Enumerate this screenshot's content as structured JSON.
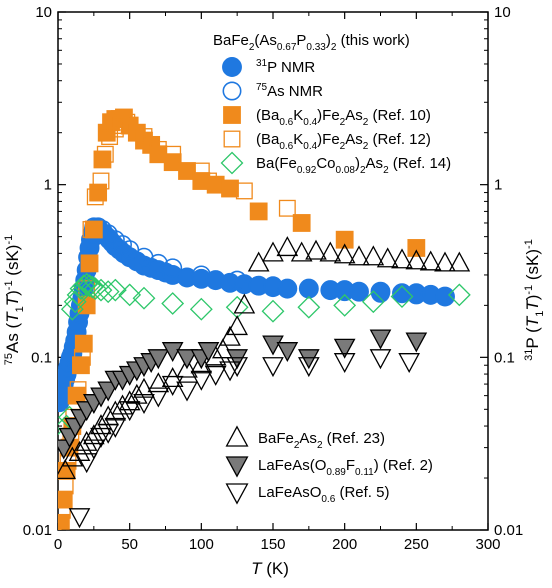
{
  "chart_data": {
    "type": "scatter",
    "title": "",
    "xlabel": "T (K)",
    "ylabel_left": "75As (T1T)-1 (sK)-1",
    "ylabel_right": "31P (T1T)-1 (sK)-1",
    "xlim": [
      0,
      300
    ],
    "ylim": [
      0.01,
      10
    ],
    "yscale": "log",
    "grid": false,
    "x_ticks": [
      "0",
      "50",
      "100",
      "150",
      "200",
      "250",
      "300"
    ],
    "y_ticks_left": [
      "0.01",
      "0.1",
      "1",
      "10"
    ],
    "y_ticks_right": [
      "0.01",
      "0.1",
      "1",
      "10"
    ],
    "legend_top_title": "BaFe2(As0.67P0.33)2 (this work)",
    "legend": [
      {
        "label": "31P NMR",
        "marker": "filled-circle",
        "color": "#1f78e0"
      },
      {
        "label": "75As NMR",
        "marker": "open-circle",
        "color": "#1f78e0"
      },
      {
        "label": "(Ba0.6K0.4)Fe2As2 (Ref. 10)",
        "marker": "filled-square",
        "color": "#f08a1c"
      },
      {
        "label": "(Ba0.6K0.4)Fe2As2 (Ref. 12)",
        "marker": "open-square",
        "color": "#f08a1c"
      },
      {
        "label": "Ba(Fe0.92Co0.08)2As2 (Ref. 14)",
        "marker": "open-diamond",
        "color": "#2ec76a"
      },
      {
        "label": "BaFe2As2 (Ref. 23)",
        "marker": "open-triangle-up",
        "color": "#000000"
      },
      {
        "label": "LaFeAs(O0.89F0.11) (Ref. 2)",
        "marker": "filled-triangle-down",
        "color": "#555555"
      },
      {
        "label": "LaFeAsO0.6 (Ref. 5)",
        "marker": "open-triangle-down",
        "color": "#000000"
      }
    ],
    "series": [
      {
        "name": "31P NMR",
        "marker": "filled-circle",
        "color": "#1f78e0",
        "points": [
          [
            1,
            0.055
          ],
          [
            2,
            0.06
          ],
          [
            3,
            0.065
          ],
          [
            4,
            0.07
          ],
          [
            5,
            0.075
          ],
          [
            6,
            0.08
          ],
          [
            7,
            0.087
          ],
          [
            8,
            0.093
          ],
          [
            9,
            0.1
          ],
          [
            10,
            0.105
          ],
          [
            11,
            0.115
          ],
          [
            12,
            0.125
          ],
          [
            13,
            0.14
          ],
          [
            14,
            0.16
          ],
          [
            15,
            0.18
          ],
          [
            16,
            0.2
          ],
          [
            17,
            0.22
          ],
          [
            18,
            0.25
          ],
          [
            19,
            0.28
          ],
          [
            20,
            0.32
          ],
          [
            21,
            0.38
          ],
          [
            22,
            0.43
          ],
          [
            23,
            0.48
          ],
          [
            24,
            0.52
          ],
          [
            25,
            0.55
          ],
          [
            26,
            0.56
          ],
          [
            27,
            0.56
          ],
          [
            28,
            0.55
          ],
          [
            29,
            0.54
          ],
          [
            30,
            0.53
          ],
          [
            32,
            0.52
          ],
          [
            34,
            0.5
          ],
          [
            36,
            0.48
          ],
          [
            38,
            0.46
          ],
          [
            40,
            0.44
          ],
          [
            43,
            0.42
          ],
          [
            46,
            0.4
          ],
          [
            50,
            0.38
          ],
          [
            55,
            0.36
          ],
          [
            60,
            0.34
          ],
          [
            65,
            0.33
          ],
          [
            70,
            0.32
          ],
          [
            75,
            0.31
          ],
          [
            80,
            0.3
          ],
          [
            90,
            0.29
          ],
          [
            100,
            0.285
          ],
          [
            110,
            0.28
          ],
          [
            120,
            0.27
          ],
          [
            130,
            0.265
          ],
          [
            140,
            0.26
          ],
          [
            150,
            0.255
          ],
          [
            160,
            0.25
          ],
          [
            175,
            0.25
          ],
          [
            190,
            0.245
          ],
          [
            200,
            0.245
          ],
          [
            210,
            0.24
          ],
          [
            225,
            0.24
          ],
          [
            240,
            0.235
          ],
          [
            250,
            0.235
          ],
          [
            260,
            0.23
          ],
          [
            270,
            0.225
          ]
        ]
      },
      {
        "name": "75As NMR",
        "marker": "open-circle",
        "color": "#1f78e0",
        "points": [
          [
            25,
            0.57
          ],
          [
            28,
            0.57
          ],
          [
            31,
            0.55
          ],
          [
            35,
            0.52
          ],
          [
            40,
            0.48
          ],
          [
            45,
            0.45
          ],
          [
            50,
            0.42
          ],
          [
            60,
            0.38
          ],
          [
            70,
            0.35
          ],
          [
            80,
            0.33
          ],
          [
            100,
            0.3
          ],
          [
            125,
            0.28
          ],
          [
            150,
            0.26
          ],
          [
            175,
            0.25
          ],
          [
            200,
            0.24
          ],
          [
            225,
            0.235
          ],
          [
            250,
            0.23
          ],
          [
            270,
            0.225
          ]
        ]
      },
      {
        "name": "(Ba0.6K0.4)Fe2As2 (Ref. 10)",
        "marker": "filled-square",
        "color": "#f08a1c",
        "points": [
          [
            2,
            0.011
          ],
          [
            4,
            0.015
          ],
          [
            6,
            0.022
          ],
          [
            8,
            0.03
          ],
          [
            10,
            0.04
          ],
          [
            13,
            0.06
          ],
          [
            16,
            0.09
          ],
          [
            18,
            0.12
          ],
          [
            20,
            0.2
          ],
          [
            22,
            0.35
          ],
          [
            25,
            0.55
          ],
          [
            28,
            0.9
          ],
          [
            31,
            1.4
          ],
          [
            34,
            2.0
          ],
          [
            37,
            2.3
          ],
          [
            40,
            2.4
          ],
          [
            43,
            2.4
          ],
          [
            46,
            2.45
          ],
          [
            50,
            2.2
          ],
          [
            55,
            2.0
          ],
          [
            60,
            1.8
          ],
          [
            65,
            1.7
          ],
          [
            70,
            1.5
          ],
          [
            80,
            1.35
          ],
          [
            90,
            1.2
          ],
          [
            100,
            1.05
          ],
          [
            110,
            1.0
          ],
          [
            120,
            0.95
          ],
          [
            140,
            0.7
          ],
          [
            170,
            0.6
          ],
          [
            200,
            0.48
          ],
          [
            250,
            0.43
          ]
        ]
      },
      {
        "name": "(Ba0.6K0.4)Fe2As2 (Ref. 12)",
        "marker": "open-square",
        "color": "#f08a1c",
        "points": [
          [
            1,
            0.01
          ],
          [
            3,
            0.013
          ],
          [
            5,
            0.018
          ],
          [
            7,
            0.025
          ],
          [
            9,
            0.035
          ],
          [
            11,
            0.045
          ],
          [
            14,
            0.065
          ],
          [
            17,
            0.1
          ],
          [
            20,
            0.25
          ],
          [
            23,
            0.55
          ],
          [
            26,
            0.85
          ],
          [
            30,
            1.05
          ],
          [
            33,
            1.5
          ],
          [
            36,
            1.9
          ],
          [
            40,
            2.1
          ],
          [
            44,
            2.2
          ],
          [
            48,
            2.3
          ],
          [
            55,
            2.0
          ],
          [
            60,
            1.9
          ],
          [
            70,
            1.6
          ],
          [
            80,
            1.5
          ],
          [
            100,
            1.2
          ],
          [
            105,
            1.05
          ],
          [
            120,
            0.95
          ],
          [
            130,
            0.92
          ],
          [
            160,
            0.73
          ]
        ]
      },
      {
        "name": "Ba(Fe0.92Co0.08)2As2 (Ref. 14)",
        "marker": "open-diamond",
        "color": "#2ec76a",
        "points": [
          [
            3,
            0.033
          ],
          [
            6,
            0.04
          ],
          [
            8,
            0.045
          ],
          [
            10,
            0.19
          ],
          [
            12,
            0.21
          ],
          [
            14,
            0.23
          ],
          [
            16,
            0.25
          ],
          [
            18,
            0.26
          ],
          [
            20,
            0.265
          ],
          [
            22,
            0.26
          ],
          [
            24,
            0.255
          ],
          [
            26,
            0.25
          ],
          [
            30,
            0.245
          ],
          [
            35,
            0.24
          ],
          [
            40,
            0.245
          ],
          [
            50,
            0.23
          ],
          [
            60,
            0.22
          ],
          [
            80,
            0.205
          ],
          [
            100,
            0.19
          ],
          [
            125,
            0.195
          ],
          [
            150,
            0.185
          ],
          [
            175,
            0.195
          ],
          [
            200,
            0.2
          ],
          [
            220,
            0.21
          ],
          [
            240,
            0.225
          ],
          [
            280,
            0.23
          ]
        ]
      },
      {
        "name": "BaFe2As2 (Ref. 23)",
        "marker": "open-triangle-up",
        "color": "#000000",
        "points": [
          [
            5,
            0.022
          ],
          [
            10,
            0.026
          ],
          [
            15,
            0.028
          ],
          [
            20,
            0.032
          ],
          [
            25,
            0.035
          ],
          [
            30,
            0.04
          ],
          [
            35,
            0.045
          ],
          [
            40,
            0.048
          ],
          [
            45,
            0.052
          ],
          [
            50,
            0.055
          ],
          [
            55,
            0.06
          ],
          [
            60,
            0.065
          ],
          [
            70,
            0.07
          ],
          [
            80,
            0.075
          ],
          [
            90,
            0.085
          ],
          [
            100,
            0.09
          ],
          [
            110,
            0.1
          ],
          [
            115,
            0.11
          ],
          [
            120,
            0.13
          ],
          [
            125,
            0.15
          ],
          [
            130,
            0.2
          ],
          [
            140,
            0.35
          ],
          [
            150,
            0.4
          ],
          [
            160,
            0.43
          ],
          [
            170,
            0.4
          ],
          [
            180,
            0.41
          ],
          [
            190,
            0.4
          ],
          [
            200,
            0.39
          ],
          [
            210,
            0.38
          ],
          [
            220,
            0.38
          ],
          [
            230,
            0.37
          ],
          [
            240,
            0.365
          ],
          [
            250,
            0.36
          ],
          [
            260,
            0.355
          ],
          [
            270,
            0.35
          ],
          [
            280,
            0.35
          ]
        ]
      },
      {
        "name": "LaFeAs(O0.89F0.11) (Ref. 2)",
        "marker": "filled-triangle-down",
        "color": "#555555",
        "points": [
          [
            4,
            0.03
          ],
          [
            8,
            0.035
          ],
          [
            12,
            0.04
          ],
          [
            16,
            0.045
          ],
          [
            20,
            0.05
          ],
          [
            25,
            0.055
          ],
          [
            30,
            0.06
          ],
          [
            35,
            0.065
          ],
          [
            40,
            0.075
          ],
          [
            45,
            0.075
          ],
          [
            50,
            0.08
          ],
          [
            55,
            0.085
          ],
          [
            60,
            0.09
          ],
          [
            65,
            0.095
          ],
          [
            70,
            0.1
          ],
          [
            80,
            0.11
          ],
          [
            90,
            0.1
          ],
          [
            100,
            0.1
          ],
          [
            105,
            0.11
          ],
          [
            125,
            0.1
          ],
          [
            150,
            0.12
          ],
          [
            160,
            0.11
          ],
          [
            175,
            0.1
          ],
          [
            200,
            0.115
          ],
          [
            225,
            0.13
          ],
          [
            250,
            0.125
          ]
        ]
      },
      {
        "name": "LaFeAsO0.6 (Ref. 5)",
        "marker": "open-triangle-down",
        "color": "#000000",
        "points": [
          [
            5,
            0.008
          ],
          [
            10,
            0.009
          ],
          [
            15,
            0.012
          ],
          [
            20,
            0.025
          ],
          [
            25,
            0.03
          ],
          [
            30,
            0.035
          ],
          [
            35,
            0.037
          ],
          [
            40,
            0.04
          ],
          [
            50,
            0.05
          ],
          [
            60,
            0.055
          ],
          [
            70,
            0.06
          ],
          [
            80,
            0.07
          ],
          [
            90,
            0.065
          ],
          [
            100,
            0.075
          ],
          [
            110,
            0.08
          ],
          [
            120,
            0.085
          ],
          [
            125,
            0.09
          ],
          [
            150,
            0.09
          ],
          [
            175,
            0.09
          ],
          [
            200,
            0.095
          ],
          [
            225,
            0.1
          ],
          [
            245,
            0.095
          ]
        ]
      }
    ]
  }
}
